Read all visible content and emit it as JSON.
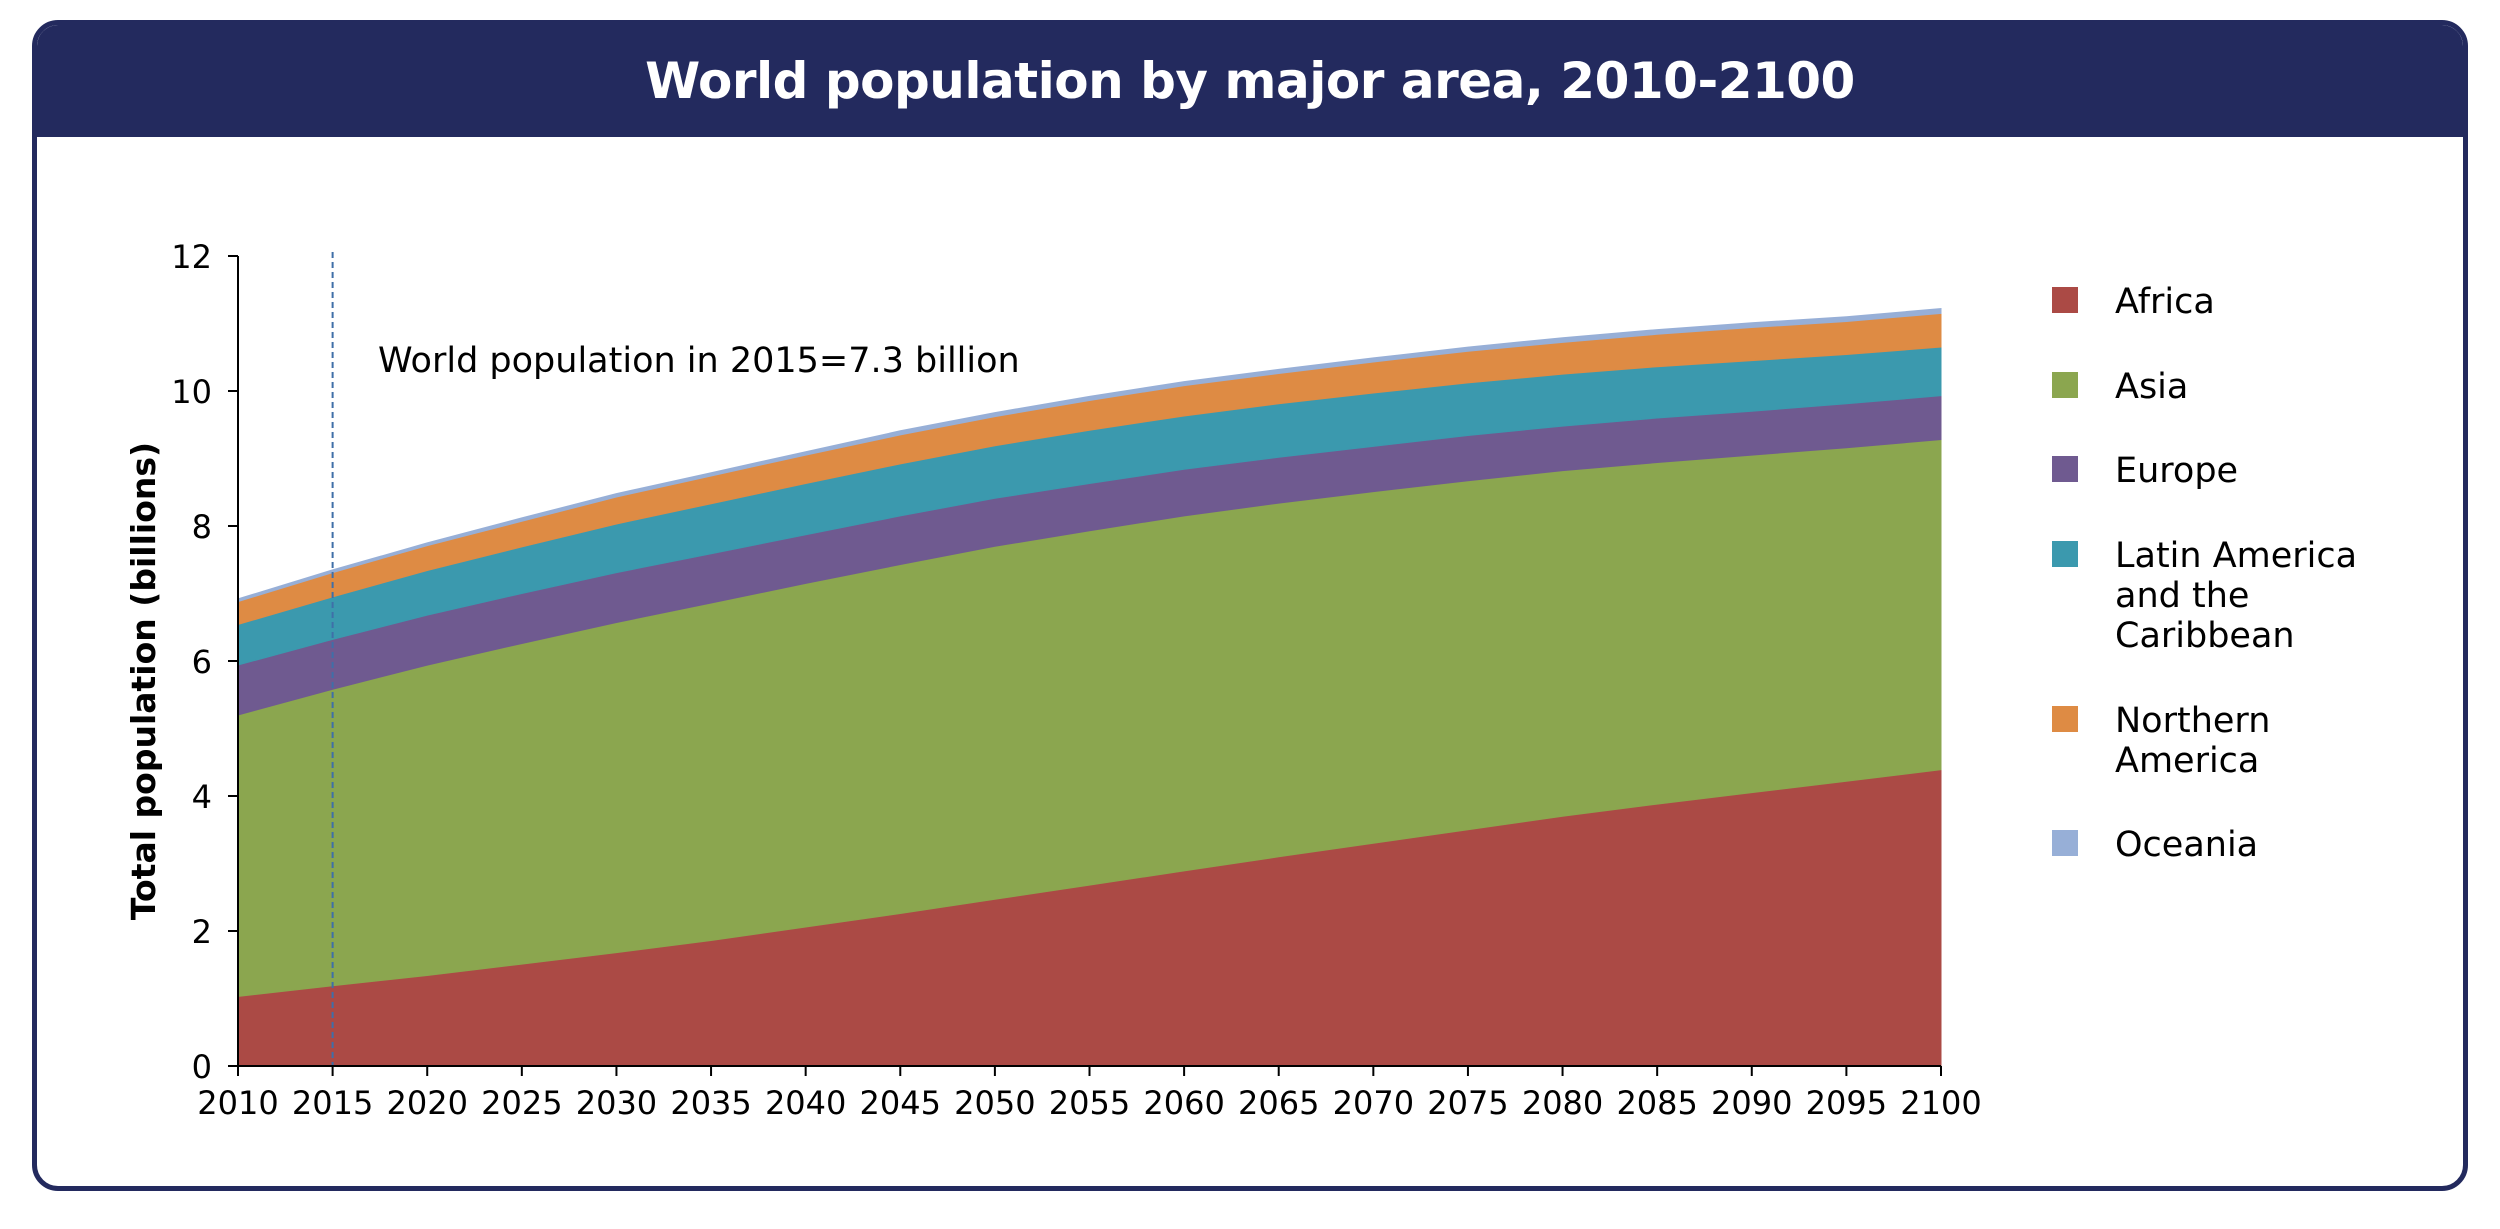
{
  "chart_data": {
    "type": "area",
    "stacked": true,
    "title": "World population by major area, 2010-2100",
    "xlabel": "",
    "ylabel": "Total population (billions)",
    "xlim": [
      2010,
      2100
    ],
    "ylim": [
      0,
      12
    ],
    "yticks": [
      0,
      2,
      4,
      6,
      8,
      10,
      12
    ],
    "x": [
      2010,
      2015,
      2020,
      2025,
      2030,
      2035,
      2040,
      2045,
      2050,
      2055,
      2060,
      2065,
      2070,
      2075,
      2080,
      2085,
      2090,
      2095,
      2100
    ],
    "annotation": {
      "x": 2015,
      "text": "World population in 2015=7.3 billion"
    },
    "grid": false,
    "legend_position": "right",
    "series": [
      {
        "name": "Africa",
        "color": "#ab4a45",
        "values": [
          1.03,
          1.19,
          1.34,
          1.51,
          1.68,
          1.86,
          2.06,
          2.26,
          2.47,
          2.68,
          2.89,
          3.1,
          3.3,
          3.5,
          3.7,
          3.88,
          4.05,
          4.22,
          4.39
        ]
      },
      {
        "name": "Asia",
        "color": "#8ba64f",
        "values": [
          4.17,
          4.39,
          4.6,
          4.75,
          4.89,
          5.0,
          5.09,
          5.17,
          5.23,
          5.25,
          5.26,
          5.24,
          5.21,
          5.17,
          5.12,
          5.06,
          5.0,
          4.94,
          4.89
        ]
      },
      {
        "name": "Europe",
        "color": "#6f5a90",
        "values": [
          0.74,
          0.74,
          0.74,
          0.74,
          0.74,
          0.73,
          0.72,
          0.72,
          0.71,
          0.7,
          0.69,
          0.68,
          0.67,
          0.67,
          0.66,
          0.66,
          0.65,
          0.65,
          0.65
        ]
      },
      {
        "name": "Latin America and the Caribbean",
        "color": "#3b99ae",
        "values": [
          0.6,
          0.63,
          0.66,
          0.69,
          0.72,
          0.74,
          0.76,
          0.77,
          0.78,
          0.79,
          0.79,
          0.79,
          0.79,
          0.78,
          0.77,
          0.76,
          0.75,
          0.73,
          0.72
        ]
      },
      {
        "name": "Northern America",
        "color": "#de8b44",
        "values": [
          0.34,
          0.36,
          0.37,
          0.38,
          0.4,
          0.41,
          0.42,
          0.43,
          0.43,
          0.44,
          0.45,
          0.45,
          0.46,
          0.47,
          0.47,
          0.48,
          0.49,
          0.49,
          0.5
        ]
      },
      {
        "name": "Oceania",
        "color": "#97afd7",
        "values": [
          0.04,
          0.04,
          0.04,
          0.05,
          0.05,
          0.05,
          0.05,
          0.06,
          0.06,
          0.06,
          0.06,
          0.06,
          0.06,
          0.06,
          0.07,
          0.07,
          0.07,
          0.07,
          0.07
        ]
      }
    ],
    "legend_lines": [
      [
        "Africa"
      ],
      [
        "Asia"
      ],
      [
        "Europe"
      ],
      [
        "Latin America",
        "and the",
        "Caribbean"
      ],
      [
        "Northern",
        "America"
      ],
      [
        "Oceania"
      ]
    ]
  }
}
